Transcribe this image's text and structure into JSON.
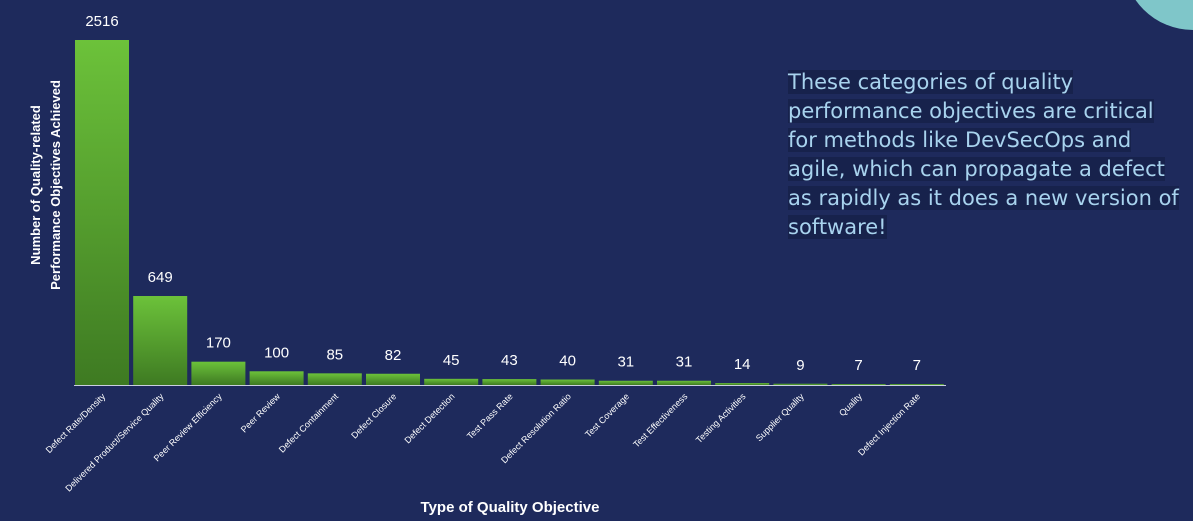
{
  "chart_data": {
    "type": "bar",
    "y_label": [
      "Number of Quality-related",
      "Performance Objectives Achieved"
    ],
    "x_label": "Type of Quality Objective",
    "categories": [
      "Defect Rate/Density",
      "Delivered Product/Service Quality",
      "Peer Review Efficiency",
      "Peer Review",
      "Defect Containment",
      "Defect Closure",
      "Defect Detection",
      "Test Pass Rate",
      "Defect Resolution Ratio",
      "Test Coverage",
      "Test Effectiveness",
      "Testing Activities",
      "Supplier Quality",
      "Quality",
      "Defect Injection Rate"
    ],
    "values": [
      2516,
      649,
      170,
      100,
      85,
      82,
      45,
      43,
      40,
      31,
      31,
      14,
      9,
      7,
      7
    ],
    "color": "#5fb032"
  },
  "callout": {
    "lines": [
      "These categories of quality",
      "performance objectives are critical",
      "for methods like DevSecOps and",
      "agile, which can propagate a defect",
      "as rapidly as it does a new version of",
      "software!"
    ]
  }
}
